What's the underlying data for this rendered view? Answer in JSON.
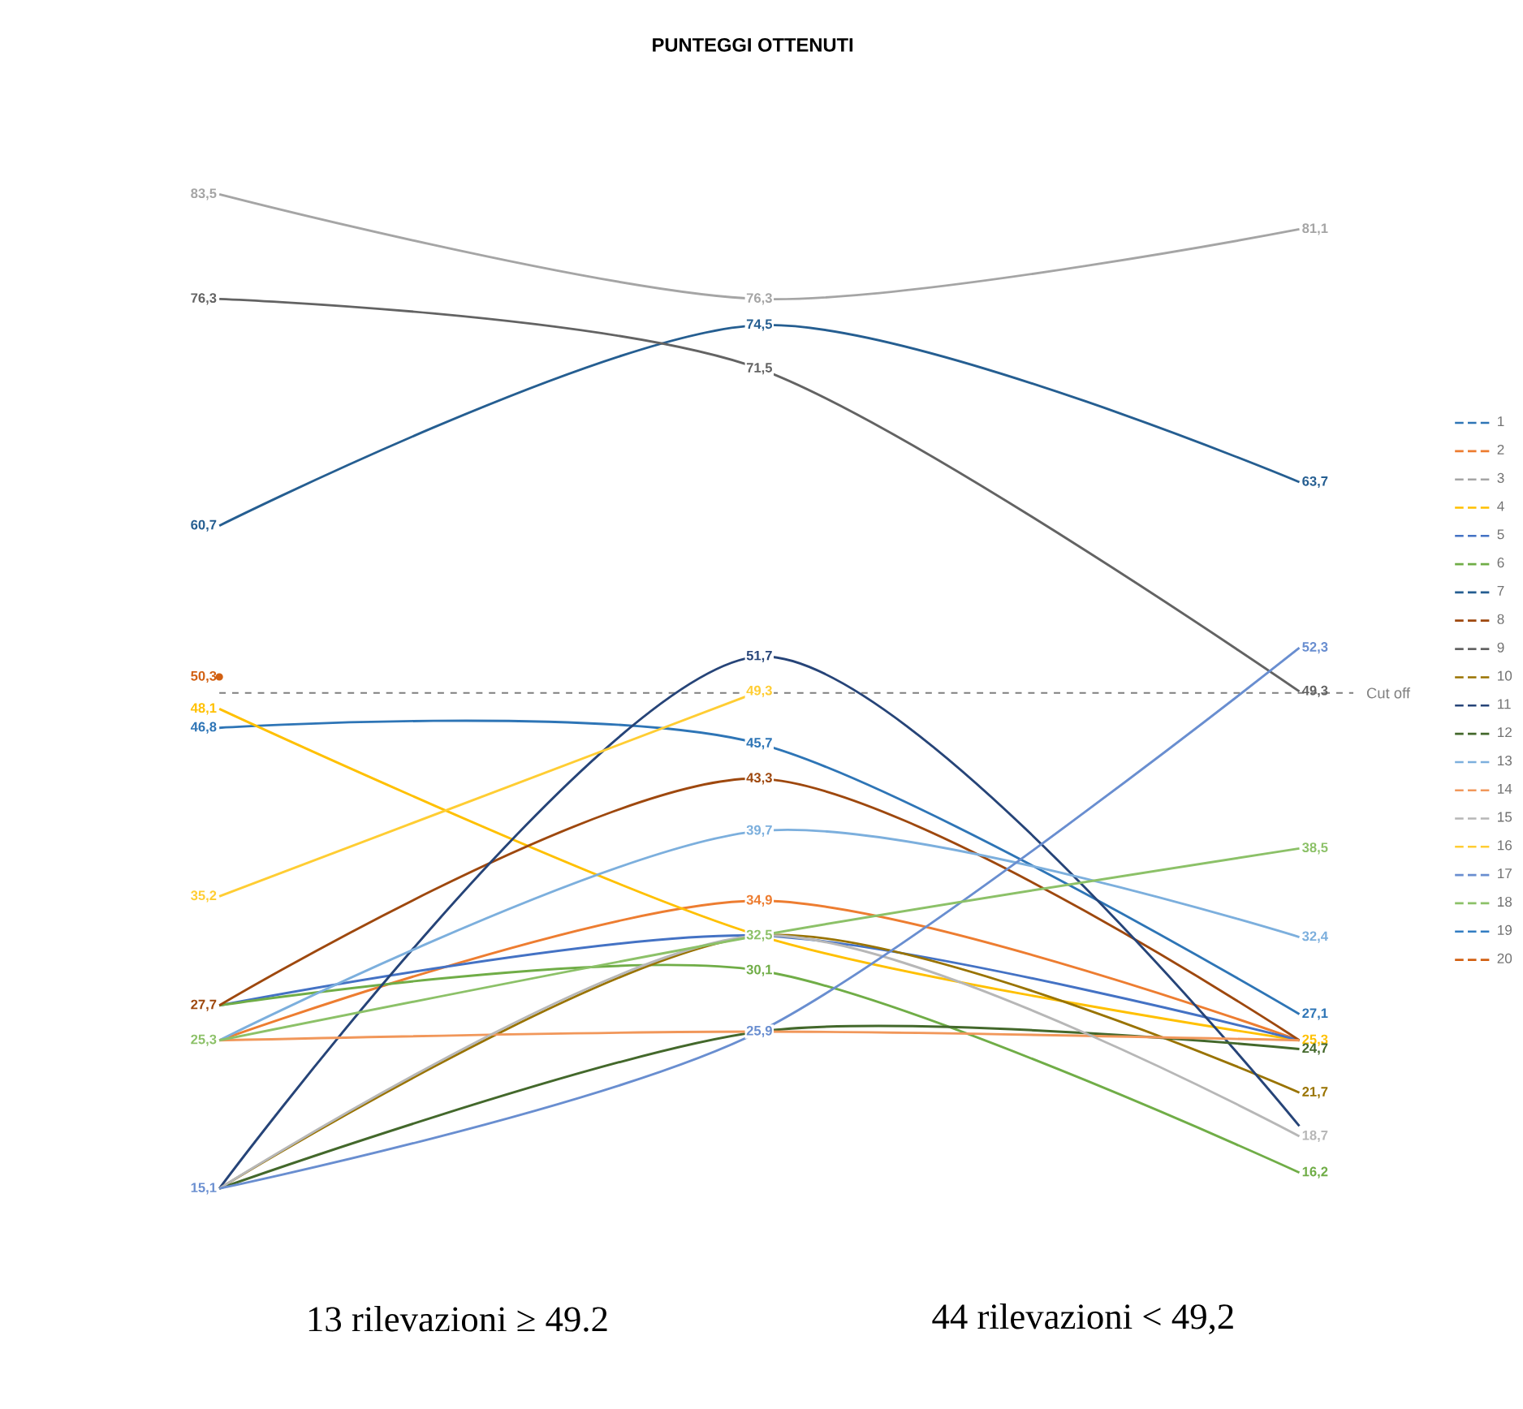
{
  "chart_data": {
    "type": "line",
    "title": "PUNTEGGI OTTENUTI",
    "categories": [
      null,
      null,
      null
    ],
    "legend": "right",
    "series": [
      {
        "name": "1",
        "color": "#2e75b6",
        "values": [
          46.8,
          45.7,
          27.1
        ],
        "value_labels": [
          "46,8",
          "45,7",
          "27,1"
        ]
      },
      {
        "name": "2",
        "color": "#ed7d31",
        "values": [
          25.3,
          34.9,
          25.3
        ],
        "value_labels": [
          null,
          "34,9",
          null
        ]
      },
      {
        "name": "3",
        "color": "#a5a5a5",
        "values": [
          83.5,
          76.3,
          81.1
        ],
        "value_labels": [
          "83,5",
          "76,3",
          "81,1"
        ]
      },
      {
        "name": "4",
        "color": "#ffc000",
        "values": [
          48.1,
          32.5,
          25.3
        ],
        "value_labels": [
          "48,1",
          null,
          "25,3"
        ]
      },
      {
        "name": "5",
        "color": "#4472c4",
        "values": [
          27.7,
          32.5,
          25.3
        ],
        "value_labels": [
          null,
          null,
          null
        ]
      },
      {
        "name": "6",
        "color": "#70ad47",
        "values": [
          27.7,
          30.1,
          16.2
        ],
        "value_labels": [
          null,
          "30,1",
          "16,2"
        ]
      },
      {
        "name": "7",
        "color": "#255e91",
        "values": [
          60.7,
          74.5,
          63.7
        ],
        "value_labels": [
          "60,7",
          "74,5",
          "63,7"
        ]
      },
      {
        "name": "8",
        "color": "#9e480e",
        "values": [
          27.7,
          43.3,
          25.3
        ],
        "value_labels": [
          "27,7",
          "43,3",
          null
        ]
      },
      {
        "name": "9",
        "color": "#636363",
        "values": [
          76.3,
          71.5,
          49.3
        ],
        "value_labels": [
          "76,3",
          "71,5",
          "49,3"
        ]
      },
      {
        "name": "10",
        "color": "#997300",
        "values": [
          15.1,
          32.5,
          21.7
        ],
        "value_labels": [
          null,
          null,
          "21,7"
        ]
      },
      {
        "name": "11",
        "color": "#264478",
        "values": [
          15.1,
          51.7,
          19.4
        ],
        "value_labels": [
          null,
          "51,7",
          null
        ]
      },
      {
        "name": "12",
        "color": "#43682b",
        "values": [
          15.1,
          25.9,
          24.7
        ],
        "value_labels": [
          null,
          null,
          "24,7"
        ]
      },
      {
        "name": "13",
        "color": "#7cafdd",
        "values": [
          25.3,
          39.7,
          32.4
        ],
        "value_labels": [
          null,
          "39,7",
          "32,4"
        ]
      },
      {
        "name": "14",
        "color": "#f1975a",
        "values": [
          25.3,
          25.9,
          25.3
        ],
        "value_labels": [
          null,
          null,
          null
        ]
      },
      {
        "name": "15",
        "color": "#b7b7b7",
        "values": [
          15.1,
          32.5,
          18.7
        ],
        "value_labels": [
          null,
          null,
          "18,7"
        ]
      },
      {
        "name": "16",
        "color": "#ffcd33",
        "values": [
          35.2,
          49.3,
          null
        ],
        "value_labels": [
          "35,2",
          "49,3",
          null
        ]
      },
      {
        "name": "17",
        "color": "#698ed0",
        "values": [
          15.1,
          25.9,
          52.3
        ],
        "value_labels": [
          "15,1",
          "25,9",
          "52,3"
        ]
      },
      {
        "name": "18",
        "color": "#8cc168",
        "values": [
          25.3,
          32.5,
          38.5
        ],
        "value_labels": [
          "25,3",
          "32,5",
          "38,5"
        ]
      },
      {
        "name": "19",
        "color": "#327dc2",
        "values": [
          null,
          null,
          null
        ]
      },
      {
        "name": "20",
        "color": "#d26012",
        "marker": "circle",
        "values": [
          50.3,
          null,
          null
        ],
        "value_labels": [
          "50,3",
          null,
          null
        ]
      }
    ],
    "ref_lines": [
      {
        "axis": "y",
        "value": 49.2,
        "label": "Cut off",
        "color": "#7f7f7f",
        "line_style": "dashed"
      }
    ],
    "annotations": [
      "13 rilevazioni ≥  49.2",
      "44 rilevazioni <  49,2"
    ]
  }
}
